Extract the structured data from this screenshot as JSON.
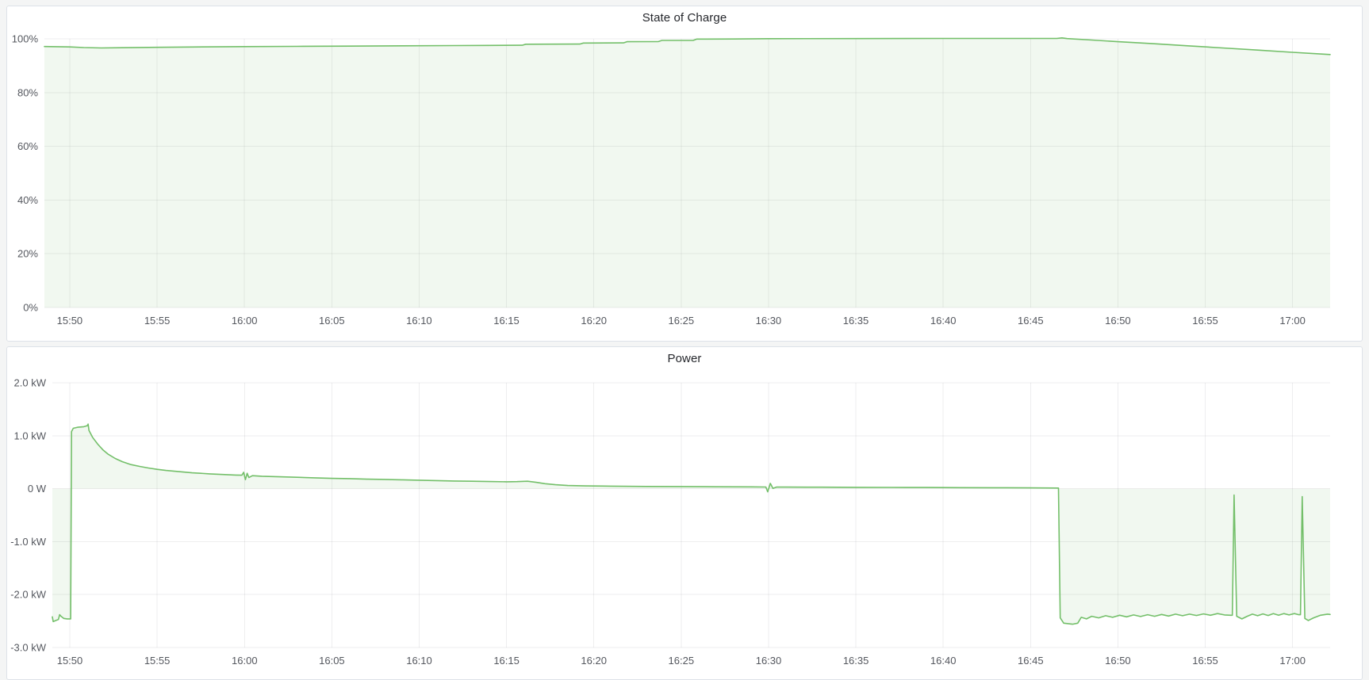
{
  "page": {
    "background_color": "#f4f5f5",
    "panel_border_color": "#dde2e8",
    "series_green": "#73bf69",
    "series_fill": "rgba(115,191,105,0.10)"
  },
  "chart_data": [
    {
      "id": "soc",
      "type": "area",
      "title": "State of Charge",
      "line_color": "#73bf69",
      "fill_color": "rgba(115,191,105,0.10)",
      "baseline_value": 0,
      "x_axis": {
        "min": -1.45,
        "max": 72.15,
        "tick_minutes": [
          0,
          5,
          10,
          15,
          20,
          25,
          30,
          35,
          40,
          45,
          50,
          55,
          60,
          65,
          70
        ],
        "tick_labels": [
          "15:50",
          "15:55",
          "16:00",
          "16:05",
          "16:10",
          "16:15",
          "16:20",
          "16:25",
          "16:30",
          "16:35",
          "16:40",
          "16:45",
          "16:50",
          "16:55",
          "17:00"
        ]
      },
      "y_axis": {
        "min": 0,
        "max": 100,
        "tick_values": [
          100,
          80,
          60,
          40,
          20,
          0
        ],
        "tick_labels": [
          "100%",
          "80%",
          "60%",
          "40%",
          "20%",
          "0%"
        ]
      },
      "points": [
        [
          -1.45,
          97.15
        ],
        [
          0,
          97.0
        ],
        [
          0.8,
          96.75
        ],
        [
          1.8,
          96.62
        ],
        [
          3,
          96.7
        ],
        [
          5,
          96.85
        ],
        [
          7,
          96.95
        ],
        [
          10,
          97.1
        ],
        [
          13,
          97.2
        ],
        [
          16,
          97.3
        ],
        [
          19,
          97.4
        ],
        [
          22,
          97.5
        ],
        [
          24,
          97.55
        ],
        [
          25.9,
          97.6
        ],
        [
          26.1,
          98.0
        ],
        [
          29.2,
          98.05
        ],
        [
          29.4,
          98.45
        ],
        [
          31.7,
          98.5
        ],
        [
          31.9,
          98.95
        ],
        [
          33.7,
          99.0
        ],
        [
          33.9,
          99.4
        ],
        [
          35.7,
          99.45
        ],
        [
          35.9,
          99.9
        ],
        [
          38,
          99.95
        ],
        [
          40,
          100.05
        ],
        [
          45,
          100.1
        ],
        [
          50,
          100.15
        ],
        [
          55,
          100.15
        ],
        [
          56.5,
          100.15
        ],
        [
          56.8,
          100.35
        ],
        [
          57.1,
          100.1
        ],
        [
          58.5,
          99.55
        ],
        [
          60,
          98.95
        ],
        [
          62,
          98.2
        ],
        [
          64,
          97.4
        ],
        [
          66,
          96.6
        ],
        [
          68,
          95.8
        ],
        [
          70,
          95.0
        ],
        [
          71,
          94.6
        ],
        [
          72.15,
          94.15
        ]
      ]
    },
    {
      "id": "power",
      "type": "area",
      "title": "Power",
      "line_color": "#73bf69",
      "fill_color": "rgba(115,191,105,0.10)",
      "baseline_value": 0,
      "x_axis": {
        "min": -1.0,
        "max": 72.15,
        "tick_minutes": [
          0,
          5,
          10,
          15,
          20,
          25,
          30,
          35,
          40,
          45,
          50,
          55,
          60,
          65,
          70
        ],
        "tick_labels": [
          "15:50",
          "15:55",
          "16:00",
          "16:05",
          "16:10",
          "16:15",
          "16:20",
          "16:25",
          "16:30",
          "16:35",
          "16:40",
          "16:45",
          "16:50",
          "16:55",
          "17:00"
        ]
      },
      "y_axis": {
        "min": -3,
        "max": 2,
        "tick_values": [
          2,
          1,
          0,
          -1,
          -2,
          -3
        ],
        "tick_labels": [
          "2.0 kW",
          "1.0 kW",
          "0 W",
          "-1.0 kW",
          "-2.0 kW",
          "-3.0 kW"
        ]
      },
      "points": [
        [
          -1.0,
          -2.42
        ],
        [
          -0.95,
          -2.51
        ],
        [
          -0.8,
          -2.49
        ],
        [
          -0.65,
          -2.47
        ],
        [
          -0.58,
          -2.38
        ],
        [
          -0.5,
          -2.41
        ],
        [
          -0.35,
          -2.45
        ],
        [
          -0.15,
          -2.46
        ],
        [
          0.05,
          -2.46
        ],
        [
          0.1,
          1.08
        ],
        [
          0.2,
          1.14
        ],
        [
          0.45,
          1.16
        ],
        [
          0.8,
          1.17
        ],
        [
          1.0,
          1.19
        ],
        [
          1.05,
          1.22
        ],
        [
          1.1,
          1.1
        ],
        [
          1.3,
          0.97
        ],
        [
          1.6,
          0.84
        ],
        [
          1.9,
          0.73
        ],
        [
          2.2,
          0.65
        ],
        [
          2.6,
          0.57
        ],
        [
          3.0,
          0.51
        ],
        [
          3.5,
          0.455
        ],
        [
          4.0,
          0.42
        ],
        [
          4.5,
          0.39
        ],
        [
          5.0,
          0.365
        ],
        [
          5.5,
          0.345
        ],
        [
          6.0,
          0.33
        ],
        [
          6.5,
          0.315
        ],
        [
          7.0,
          0.3
        ],
        [
          7.5,
          0.29
        ],
        [
          8.0,
          0.28
        ],
        [
          8.5,
          0.272
        ],
        [
          9.0,
          0.265
        ],
        [
          9.5,
          0.258
        ],
        [
          9.85,
          0.255
        ],
        [
          9.95,
          0.31
        ],
        [
          10.05,
          0.17
        ],
        [
          10.15,
          0.29
        ],
        [
          10.25,
          0.21
        ],
        [
          10.45,
          0.245
        ],
        [
          11,
          0.235
        ],
        [
          12,
          0.225
        ],
        [
          13,
          0.215
        ],
        [
          14,
          0.205
        ],
        [
          15,
          0.195
        ],
        [
          16,
          0.19
        ],
        [
          17,
          0.18
        ],
        [
          18,
          0.175
        ],
        [
          19,
          0.168
        ],
        [
          20,
          0.16
        ],
        [
          21,
          0.152
        ],
        [
          22,
          0.145
        ],
        [
          23,
          0.14
        ],
        [
          24,
          0.135
        ],
        [
          25,
          0.13
        ],
        [
          25.6,
          0.133
        ],
        [
          26.2,
          0.14
        ],
        [
          26.7,
          0.12
        ],
        [
          27.2,
          0.095
        ],
        [
          27.8,
          0.075
        ],
        [
          28.5,
          0.06
        ],
        [
          29.5,
          0.052
        ],
        [
          31,
          0.048
        ],
        [
          33,
          0.042
        ],
        [
          35,
          0.04
        ],
        [
          37,
          0.036
        ],
        [
          39,
          0.034
        ],
        [
          39.85,
          0.032
        ],
        [
          39.95,
          -0.06
        ],
        [
          40.1,
          0.1
        ],
        [
          40.25,
          0.005
        ],
        [
          40.45,
          0.03
        ],
        [
          41,
          0.03
        ],
        [
          43,
          0.028
        ],
        [
          45,
          0.026
        ],
        [
          47,
          0.024
        ],
        [
          49,
          0.022
        ],
        [
          51,
          0.02
        ],
        [
          53,
          0.018
        ],
        [
          55,
          0.015
        ],
        [
          56.6,
          0.012
        ],
        [
          56.7,
          -2.44
        ],
        [
          56.9,
          -2.54
        ],
        [
          57.4,
          -2.56
        ],
        [
          57.7,
          -2.54
        ],
        [
          57.9,
          -2.43
        ],
        [
          58.2,
          -2.46
        ],
        [
          58.5,
          -2.41
        ],
        [
          58.9,
          -2.44
        ],
        [
          59.3,
          -2.4
        ],
        [
          59.7,
          -2.43
        ],
        [
          60.1,
          -2.39
        ],
        [
          60.5,
          -2.42
        ],
        [
          60.9,
          -2.385
        ],
        [
          61.3,
          -2.415
        ],
        [
          61.7,
          -2.38
        ],
        [
          62.1,
          -2.41
        ],
        [
          62.5,
          -2.375
        ],
        [
          62.9,
          -2.405
        ],
        [
          63.3,
          -2.37
        ],
        [
          63.7,
          -2.4
        ],
        [
          64.1,
          -2.37
        ],
        [
          64.5,
          -2.395
        ],
        [
          64.9,
          -2.365
        ],
        [
          65.3,
          -2.39
        ],
        [
          65.7,
          -2.36
        ],
        [
          66.1,
          -2.385
        ],
        [
          66.45,
          -2.39
        ],
        [
          66.55,
          -2.39
        ],
        [
          66.65,
          -0.12
        ],
        [
          66.8,
          -2.41
        ],
        [
          67.1,
          -2.46
        ],
        [
          67.4,
          -2.41
        ],
        [
          67.7,
          -2.37
        ],
        [
          68.0,
          -2.4
        ],
        [
          68.3,
          -2.365
        ],
        [
          68.6,
          -2.395
        ],
        [
          68.9,
          -2.36
        ],
        [
          69.2,
          -2.39
        ],
        [
          69.5,
          -2.36
        ],
        [
          69.8,
          -2.385
        ],
        [
          70.1,
          -2.36
        ],
        [
          70.35,
          -2.38
        ],
        [
          70.45,
          -2.38
        ],
        [
          70.55,
          -0.15
        ],
        [
          70.7,
          -2.45
        ],
        [
          70.9,
          -2.49
        ],
        [
          71.2,
          -2.44
        ],
        [
          71.6,
          -2.39
        ],
        [
          72.0,
          -2.37
        ],
        [
          72.15,
          -2.375
        ]
      ]
    }
  ]
}
